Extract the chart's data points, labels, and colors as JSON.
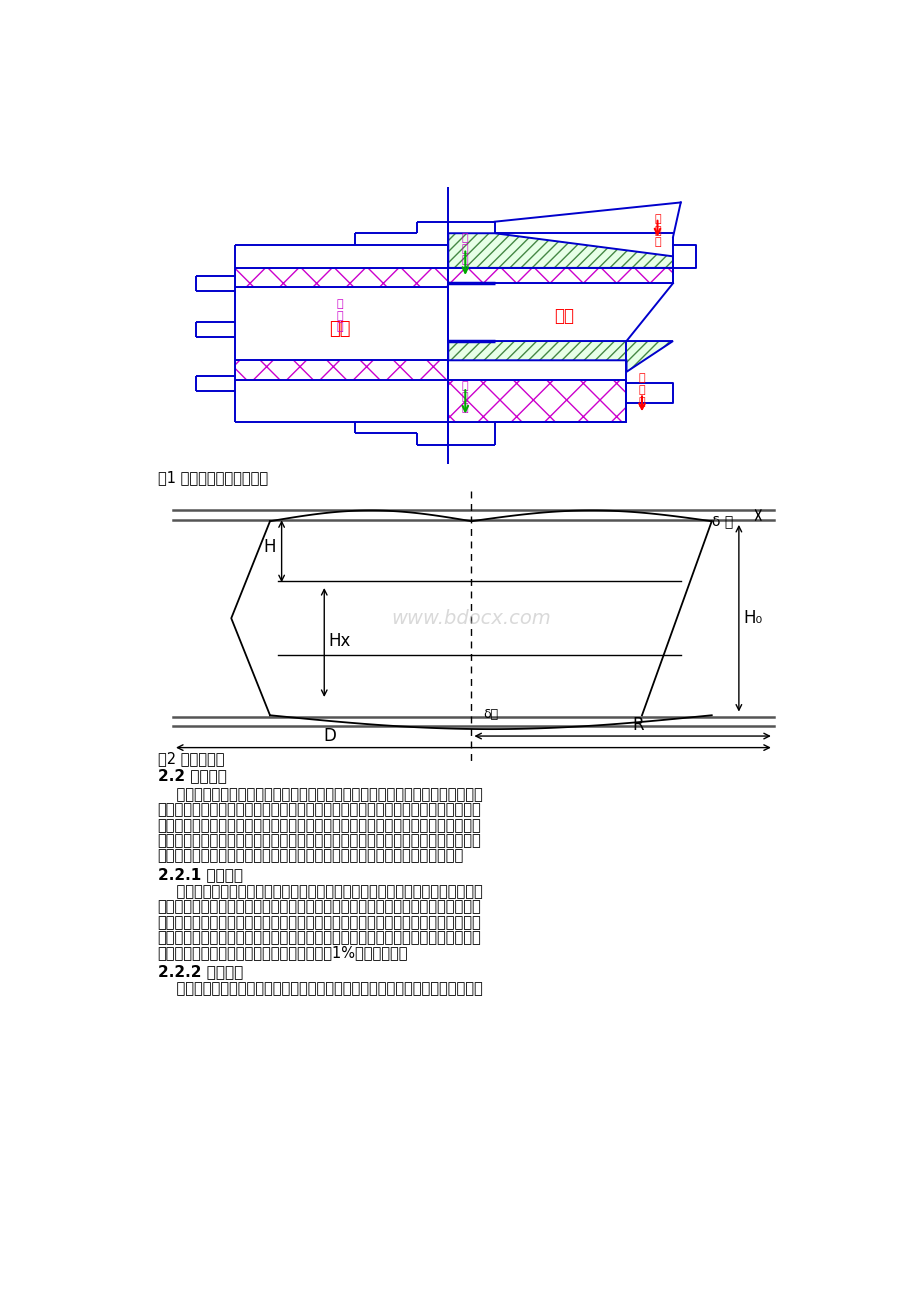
{
  "page_bg": "#ffffff",
  "fig1_caption": "图1 转子的冷态和热态情况",
  "fig2_caption": "图2 转子热变形",
  "section_heading": "2.2 漏风分析",
  "subsection1": "2.2.1 携带漏风",
  "subsection2": "2.2.2 直接漏风",
  "watermark": "www.bdocx.com",
  "blue_color": "#0000CC",
  "red_color": "#FF0000",
  "magenta_color": "#CC00CC",
  "green_color": "#00AA00",
  "dim_color": "#333333",
  "text_font_size": 10.5,
  "caption_font_size": 10.5,
  "heading_font_size": 11.0,
  "p1_lines": [
    "    回转式空气预热器主要由转子和外壳组成，转子是运动部件，外壳是静止部件，",
    "动静部件之间肯定存在间隙，这种间隙就是漏风的渠道。空预器处于锅炉烟风系统的",
    "进口和出口，空气侧压力是正压，烟气侧压力是负压，二者存在压力差，从而产生漏",
    "风。由于压差和间隙的存在造成的漏风称为直接漏风；还有一种漏风叫携带漏风，是",
    "由于转子内具有一定容积，当转子转动时，必定会携带一部分气体进入另一侧。"
  ],
  "p2_lines": [
    "    携带漏风主要因为空气预热器在转动过程中，蓄热元件中部分空气被携带到烟气",
    "中，而蓄热元件中的部分烟气被携带到空气中，这是回转式空预器的固有特点，是不",
    "可避免的。为了降低结构漏风量，在满足换热性能的前提下，尽量选择较低转速，并",
    "且转子内尽量充满传热元件，即转子高度不要留有太多的剩余空间，但携带漏风量占",
    "空预器总漏风量的份额较少，一般来说不超过1%，常可忽略。"
  ],
  "p3_lines": [
    "    直接漏风是空预器漏风的主要来源，这是由于空气预热器的烟气侧和空气侧存在"
  ]
}
